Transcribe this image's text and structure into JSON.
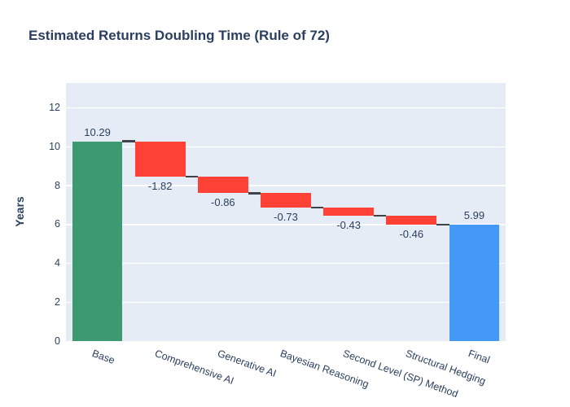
{
  "title": "Estimated Returns Doubling Time (Rule of 72)",
  "chart_data": {
    "type": "bar",
    "subtype": "waterfall",
    "title": "Estimated Returns Doubling Time (Rule of 72)",
    "xlabel": "",
    "ylabel": "Years",
    "ylim": [
      0,
      13.29
    ],
    "yticks": [
      0,
      2,
      4,
      6,
      8,
      10,
      12
    ],
    "grid": "horizontal",
    "legend": "none",
    "categories": [
      "Base",
      "Comprehensive AI",
      "Generative AI",
      "Bayesian Reasoning",
      "Second Level (SP) Method",
      "Structural Hedging",
      "Final"
    ],
    "steps": [
      {
        "label": "Base",
        "value": 10.29,
        "display": "10.29",
        "kind": "absolute",
        "running_total": 10.29
      },
      {
        "label": "Comprehensive AI",
        "value": -1.82,
        "display": "-1.82",
        "kind": "relative",
        "running_total": 8.47
      },
      {
        "label": "Generative AI",
        "value": -0.86,
        "display": "-0.86",
        "kind": "relative",
        "running_total": 7.61
      },
      {
        "label": "Bayesian Reasoning",
        "value": -0.73,
        "display": "-0.73",
        "kind": "relative",
        "running_total": 6.88
      },
      {
        "label": "Second Level (SP) Method",
        "value": -0.43,
        "display": "-0.43",
        "kind": "relative",
        "running_total": 6.45
      },
      {
        "label": "Structural Hedging",
        "value": -0.46,
        "display": "-0.46",
        "kind": "relative",
        "running_total": 5.99
      },
      {
        "label": "Final",
        "value": 5.99,
        "display": "5.99",
        "kind": "total",
        "running_total": 5.99
      }
    ],
    "colors": {
      "increasing": "#3d9970",
      "decreasing": "#ff4136",
      "total": "#4499f7",
      "connector": "#3f434a",
      "panel_background": "#e5ecf6",
      "gridline": "#ffffff",
      "text": "#2a3f5f",
      "title_text": "#2a3f5f"
    }
  }
}
